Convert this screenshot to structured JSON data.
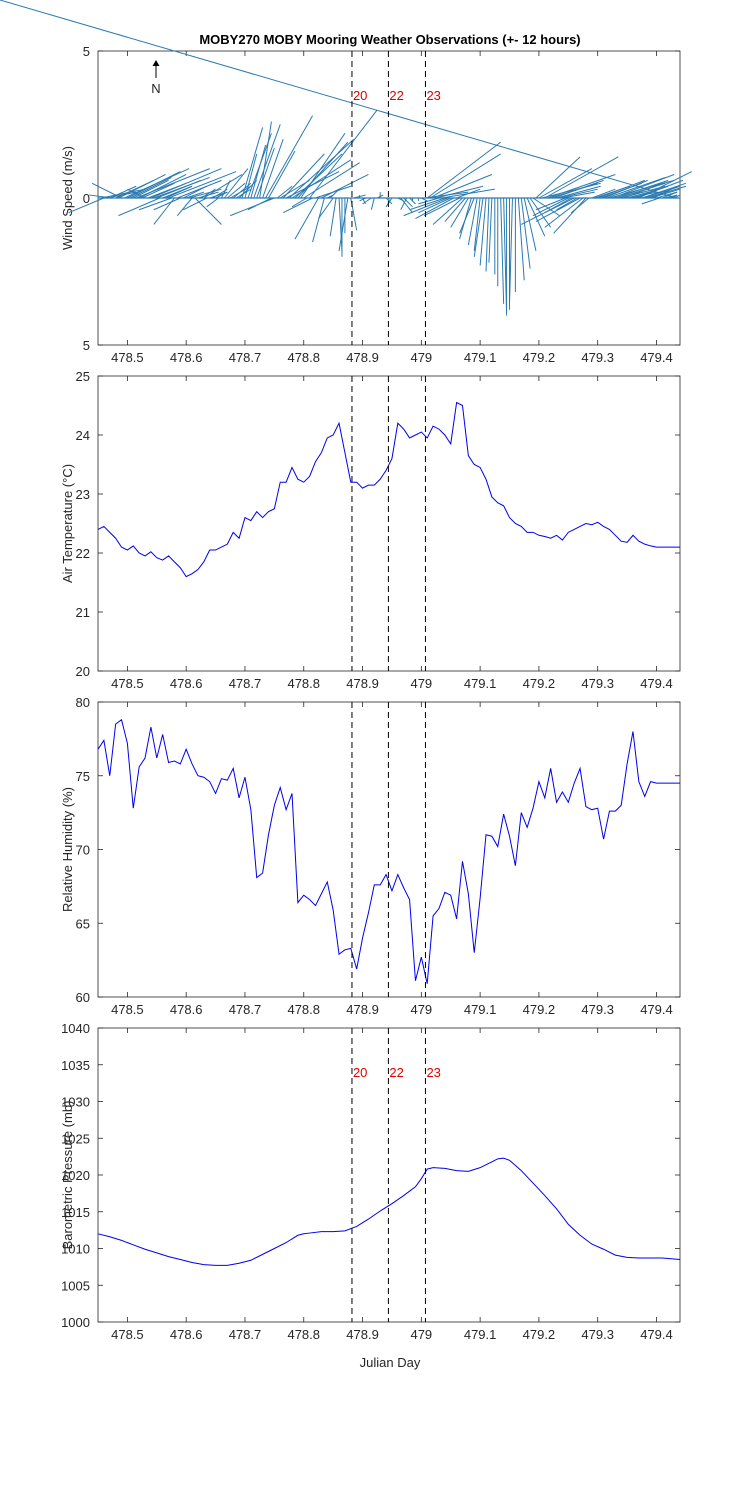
{
  "title": "MOBY270 MOBY Mooring Weather Observations (+- 12 hours)",
  "xlabel": "Julian Day",
  "xlim": [
    478.45,
    479.44
  ],
  "xticks": [
    478.5,
    478.6,
    478.7,
    478.8,
    478.9,
    479,
    479.1,
    479.2,
    479.3,
    479.4
  ],
  "xtick_labels": [
    "478.5",
    "478.6",
    "478.7",
    "478.8",
    "478.9",
    "479",
    "479.1",
    "479.2",
    "479.3",
    "479.4"
  ],
  "markers": [
    {
      "x": 478.882,
      "label": "20"
    },
    {
      "x": 478.944,
      "label": "22"
    },
    {
      "x": 479.007,
      "label": "23"
    }
  ],
  "north_label": "N",
  "colors": {
    "line": "#0000ee",
    "quiver": "#2a7ab0",
    "marker_label": "#e00000",
    "axis": "#262626"
  },
  "chart_data": [
    {
      "type": "line",
      "subtype": "quiver",
      "ylabel": "Wind Speed (m/s)",
      "ylim": [
        -5,
        5
      ],
      "ytick_labels": [
        "5",
        "0",
        "5"
      ],
      "x": [
        478.455,
        478.46,
        478.465,
        478.47,
        478.475,
        478.48,
        478.485,
        478.49,
        478.495,
        478.5,
        478.505,
        478.51,
        478.515,
        478.52,
        478.525,
        478.53,
        478.535,
        478.54,
        478.545,
        478.55,
        478.555,
        478.56,
        478.565,
        478.57,
        478.575,
        478.58,
        478.585,
        478.59,
        478.595,
        478.6,
        478.605,
        478.61,
        478.615,
        478.62,
        478.625,
        478.63,
        478.635,
        478.64,
        478.645,
        478.65,
        478.655,
        478.66,
        478.665,
        478.67,
        478.675,
        478.68,
        478.685,
        478.69,
        478.695,
        478.7,
        478.705,
        478.71,
        478.715,
        478.72,
        478.725,
        478.73,
        478.735,
        478.74,
        478.745,
        478.75,
        478.755,
        478.76,
        478.765,
        478.77,
        478.775,
        478.78,
        478.785,
        478.79,
        478.795,
        478.8,
        478.805,
        478.81,
        478.815,
        478.82,
        478.825,
        478.83,
        478.835,
        478.84,
        478.845,
        478.85,
        478.855,
        478.86,
        478.865,
        478.87,
        478.875,
        478.88,
        478.885,
        478.89,
        478.895,
        478.9,
        478.905,
        478.91,
        478.915,
        478.92,
        478.925,
        478.93,
        478.935,
        478.94,
        478.945,
        478.95,
        478.955,
        478.96,
        478.965,
        478.97,
        478.975,
        478.98,
        478.985,
        478.99,
        478.995,
        479,
        479.005,
        479.01,
        479.015,
        479.02,
        479.025,
        479.03,
        479.035,
        479.04,
        479.045,
        479.05,
        479.055,
        479.06,
        479.065,
        479.07,
        479.075,
        479.08,
        479.085,
        479.09,
        479.095,
        479.1,
        479.105,
        479.11,
        479.115,
        479.12,
        479.125,
        479.13,
        479.135,
        479.14,
        479.145,
        479.15,
        479.155,
        479.16,
        479.165,
        479.17,
        479.175,
        479.18,
        479.185,
        479.19,
        479.195,
        479.2,
        479.205,
        479.21,
        479.215,
        479.22,
        479.225,
        479.23,
        479.235,
        479.24,
        479.245,
        479.25,
        479.255,
        479.26,
        479.265,
        479.27,
        479.275,
        479.28,
        479.285,
        479.29,
        479.295,
        479.3,
        479.305,
        479.31,
        479.315,
        479.32,
        479.325,
        479.33,
        479.335,
        479.34,
        479.345,
        479.35,
        479.355,
        479.36,
        479.365,
        479.37,
        479.375,
        479.38,
        479.385,
        479.39,
        479.395,
        479.4,
        479.405,
        479.41,
        479.415,
        479.42,
        479.425,
        479.43,
        479.435
      ],
      "u": [
        1.5,
        -1.2,
        1.0,
        0.9,
        -0.8,
        1.3,
        1.6,
        -1.0,
        2.2,
        1.8,
        1.4,
        1.2,
        2.5,
        1.6,
        1.1,
        -0.6,
        1.3,
        2.4,
        1.9,
        1.5,
        -1.4,
        1.0,
        0.9,
        2.3,
        -1.1,
        -0.7,
        1.5,
        -0.9,
        0.8,
        0.6,
        1.1,
        -0.5,
        0.9,
        0.7,
        0.5,
        1.3,
        -0.8,
        0.6,
        0.5,
        0.4,
        -0.4,
        0.3,
        0.8,
        0.6,
        0.7,
        0.6,
        0.5,
        0.6,
        0.7,
        0.4,
        0.8,
        0.5,
        0.9,
        0.6,
        0.4,
        0.7,
        1.6,
        0.9,
        -0.8,
        -1.5,
        0.5,
        1.0,
        1.4,
        1.8,
        2.2,
        2.0,
        1.6,
        1.7,
        1.5,
        1.9,
        -0.5,
        2.3,
        -1.0,
        1.2,
        -0.8,
        1.6,
        -0.4,
        0.2,
        0.3,
        -0.5,
        -0.2,
        0.1,
        0.0,
        0.0,
        -0.3,
        0.2,
        0.4,
        0.3,
        0.0,
        0.1,
        -0.2,
        0.0,
        -0.3,
        -0.1,
        0.2,
        0.0,
        0.3,
        0.2,
        0.0,
        -0.2,
        0.3,
        0.2,
        0.4,
        0.3,
        -0.2,
        0.2,
        0.0,
        0.0,
        0.0,
        0.2,
        1.5,
        2.5,
        2.4,
        2.0,
        1.6,
        -0.7,
        1.8,
        -1.2,
        -1.5,
        -1.1,
        -1.3,
        0.8,
        -1.2,
        -1.0,
        -0.7,
        -0.6,
        -0.4,
        -0.5,
        -0.3,
        -0.2,
        -0.3,
        -0.2,
        -0.1,
        -0.1,
        0.0,
        0.0,
        0.1,
        0.1,
        0.0,
        0.0,
        -0.1,
        0.0,
        0.2,
        0.3,
        0.4,
        0.6,
        0.7,
        0.9,
        1.5,
        1.8,
        2.0,
        2.5,
        2.3,
        1.6,
        1.7,
        1.5,
        1.3,
        1.1,
        -1.0,
        -1.2,
        -0.9,
        -1.8,
        -0.7,
        -1.5,
        -1.3,
        -1.1,
        -0.6,
        0.8,
        1.2,
        1.6,
        1.4,
        1.5,
        2.0,
        2.2,
        2.1,
        1.8,
        1.6,
        1.5,
        1.3,
        1.1,
        0.9,
        1.2,
        1.6,
        1.8,
        1.5,
        1.2,
        1.3,
        1.0,
        0.8,
        0.7,
        -0.6,
        0.5,
        0.4,
        0.3,
        0.2,
        0.2
      ],
      "v": [
        0.3,
        -0.5,
        0.2,
        0.4,
        0.1,
        0.6,
        0.8,
        0.5,
        1.0,
        0.9,
        0.7,
        0.6,
        1.0,
        0.8,
        0.5,
        0.3,
        0.5,
        1.0,
        0.7,
        0.6,
        -0.6,
        0.4,
        0.4,
        0.9,
        -0.4,
        -0.9,
        0.6,
        -0.4,
        0.4,
        0.2,
        0.3,
        -0.6,
        -0.9,
        0.2,
        0.3,
        0.8,
        -0.4,
        0.2,
        0.3,
        0.2,
        -0.3,
        0.6,
        1.0,
        0.5,
        0.4,
        0.5,
        0.3,
        0.6,
        2.4,
        1.5,
        2.2,
        1.8,
        2.5,
        1.7,
        2.6,
        2.0,
        2.8,
        1.6,
        -0.4,
        -0.6,
        0.4,
        0.6,
        1.5,
        0.9,
        2.0,
        1.3,
        1.5,
        1.9,
        2.2,
        1.2,
        -0.3,
        3.0,
        -0.5,
        0.4,
        -1.4,
        0.8,
        -1.5,
        0.1,
        0.3,
        -0.7,
        -1.3,
        -1.8,
        -2.0,
        -1.2,
        -1.8,
        -1.1,
        0.1,
        0.0,
        0.1,
        -0.2,
        -0.1,
        0.0,
        -0.2,
        -0.4,
        0.1,
        0.2,
        0.0,
        -0.2,
        -0.1,
        -0.3,
        0.0,
        -0.1,
        -0.5,
        -0.3,
        -0.4,
        -0.2,
        -0.1,
        0.0,
        -0.1,
        -0.1,
        0.2,
        1.9,
        1.5,
        0.8,
        0.4,
        -0.2,
        0.3,
        -0.4,
        -0.6,
        -0.5,
        -0.7,
        0.3,
        -0.6,
        -0.9,
        -0.8,
        -1.0,
        -1.4,
        -1.2,
        -1.6,
        -1.8,
        -2.0,
        -2.3,
        -2.5,
        -2.2,
        -2.6,
        -3.0,
        -3.6,
        -3.9,
        -4.0,
        -3.8,
        -3.6,
        -3.2,
        -2.8,
        -2.4,
        -1.8,
        -1.3,
        -1.0,
        -0.6,
        1.4,
        1.0,
        0.5,
        1.4,
        0.8,
        0.5,
        0.6,
        0.4,
        0.3,
        0.2,
        -0.4,
        -0.6,
        -0.5,
        -0.9,
        -0.4,
        -0.8,
        -1.0,
        -1.2,
        -0.5,
        0.3,
        0.4,
        0.6,
        0.5,
        0.6,
        0.7,
        0.6,
        0.8,
        0.6,
        0.5,
        0.4,
        0.5,
        0.3,
        0.2,
        0.4,
        0.6,
        0.9,
        0.5,
        0.4,
        0.4,
        0.3,
        0.4,
        0.2,
        -0.2,
        0.2,
        0.1,
        0.1,
        0.1,
        0.1
      ]
    },
    {
      "type": "line",
      "ylabel": "Air Temperature (°C)",
      "ylim": [
        20,
        25
      ],
      "yticks": [
        20,
        21,
        22,
        23,
        24,
        25
      ],
      "ytick_labels": [
        "20",
        "21",
        "22",
        "23",
        "24",
        "25"
      ],
      "x": [
        478.45,
        478.46,
        478.47,
        478.48,
        478.49,
        478.5,
        478.51,
        478.52,
        478.53,
        478.54,
        478.55,
        478.56,
        478.57,
        478.58,
        478.59,
        478.6,
        478.61,
        478.62,
        478.63,
        478.64,
        478.65,
        478.66,
        478.67,
        478.68,
        478.69,
        478.7,
        478.71,
        478.72,
        478.73,
        478.74,
        478.75,
        478.76,
        478.77,
        478.78,
        478.79,
        478.8,
        478.81,
        478.82,
        478.83,
        478.84,
        478.85,
        478.86,
        478.87,
        478.88,
        478.89,
        478.9,
        478.91,
        478.92,
        478.93,
        478.94,
        478.95,
        478.96,
        478.97,
        478.98,
        478.99,
        479,
        479.01,
        479.02,
        479.03,
        479.04,
        479.05,
        479.06,
        479.07,
        479.08,
        479.09,
        479.1,
        479.11,
        479.12,
        479.13,
        479.14,
        479.15,
        479.16,
        479.17,
        479.18,
        479.19,
        479.2,
        479.21,
        479.22,
        479.23,
        479.24,
        479.25,
        479.26,
        479.27,
        479.28,
        479.29,
        479.3,
        479.31,
        479.32,
        479.33,
        479.34,
        479.35,
        479.36,
        479.37,
        479.38,
        479.39,
        479.4,
        479.41,
        479.42,
        479.43,
        479.44
      ],
      "y": [
        22.4,
        22.45,
        22.35,
        22.25,
        22.1,
        22.05,
        22.12,
        22.0,
        21.95,
        22.02,
        21.92,
        21.88,
        21.95,
        21.85,
        21.75,
        21.6,
        21.65,
        21.72,
        21.85,
        22.05,
        22.05,
        22.1,
        22.15,
        22.35,
        22.25,
        22.6,
        22.55,
        22.7,
        22.6,
        22.7,
        22.75,
        23.2,
        23.2,
        23.45,
        23.25,
        23.2,
        23.3,
        23.55,
        23.7,
        23.95,
        24.0,
        24.2,
        23.7,
        23.2,
        23.2,
        23.1,
        23.15,
        23.15,
        23.25,
        23.4,
        23.6,
        24.2,
        24.1,
        23.95,
        24.0,
        24.05,
        23.95,
        24.15,
        24.1,
        24.0,
        23.85,
        24.55,
        24.5,
        23.65,
        23.5,
        23.45,
        23.25,
        22.95,
        22.85,
        22.8,
        22.6,
        22.5,
        22.45,
        22.35,
        22.35,
        22.3,
        22.28,
        22.25,
        22.3,
        22.22,
        22.35,
        22.4,
        22.45,
        22.5,
        22.48,
        22.52,
        22.45,
        22.4,
        22.3,
        22.2,
        22.18,
        22.3,
        22.2,
        22.15,
        22.12,
        22.1,
        22.1,
        22.1,
        22.1,
        22.1
      ]
    },
    {
      "type": "line",
      "ylabel": "Relative Humidity (%)",
      "ylim": [
        60,
        80
      ],
      "yticks": [
        60,
        65,
        70,
        75,
        80
      ],
      "ytick_labels": [
        "60",
        "65",
        "70",
        "75",
        "80"
      ],
      "x": [
        478.45,
        478.46,
        478.47,
        478.48,
        478.49,
        478.5,
        478.51,
        478.52,
        478.53,
        478.54,
        478.55,
        478.56,
        478.57,
        478.58,
        478.59,
        478.6,
        478.61,
        478.62,
        478.63,
        478.64,
        478.65,
        478.66,
        478.67,
        478.68,
        478.69,
        478.7,
        478.71,
        478.72,
        478.73,
        478.74,
        478.75,
        478.76,
        478.77,
        478.78,
        478.79,
        478.8,
        478.81,
        478.82,
        478.83,
        478.84,
        478.85,
        478.86,
        478.87,
        478.88,
        478.89,
        478.9,
        478.91,
        478.92,
        478.93,
        478.94,
        478.95,
        478.96,
        478.97,
        478.98,
        478.99,
        479,
        479.01,
        479.02,
        479.03,
        479.04,
        479.05,
        479.06,
        479.07,
        479.08,
        479.09,
        479.1,
        479.11,
        479.12,
        479.13,
        479.14,
        479.15,
        479.16,
        479.17,
        479.18,
        479.19,
        479.2,
        479.21,
        479.22,
        479.23,
        479.24,
        479.25,
        479.26,
        479.27,
        479.28,
        479.29,
        479.3,
        479.31,
        479.32,
        479.33,
        479.34,
        479.35,
        479.36,
        479.37,
        479.38,
        479.39,
        479.4,
        479.41,
        479.42,
        479.43,
        479.44
      ],
      "y": [
        76.8,
        77.4,
        75.0,
        78.5,
        78.8,
        77.2,
        72.8,
        75.6,
        76.2,
        78.3,
        76.2,
        77.8,
        75.9,
        76.0,
        75.8,
        76.8,
        75.8,
        75.0,
        74.9,
        74.6,
        73.8,
        74.8,
        74.7,
        75.5,
        73.5,
        74.9,
        72.7,
        68.1,
        68.4,
        71.0,
        73.0,
        74.2,
        72.7,
        73.8,
        66.4,
        66.9,
        66.6,
        66.2,
        67.0,
        67.8,
        65.9,
        62.9,
        63.2,
        63.3,
        61.9,
        64.0,
        65.7,
        67.6,
        67.6,
        68.3,
        67.2,
        68.3,
        67.4,
        66.6,
        61.1,
        62.7,
        60.9,
        65.5,
        66.0,
        67.1,
        66.9,
        65.3,
        69.2,
        67.0,
        63.0,
        66.7,
        71.0,
        70.9,
        70.2,
        72.4,
        70.9,
        68.9,
        72.5,
        71.5,
        72.8,
        74.6,
        73.5,
        75.5,
        73.2,
        73.9,
        73.2,
        74.5,
        75.5,
        72.9,
        72.7,
        72.8,
        70.7,
        72.6,
        72.6,
        73.0,
        75.8,
        78.0,
        74.6,
        73.6,
        74.6,
        74.5,
        74.5,
        74.5,
        74.5,
        74.5
      ]
    },
    {
      "type": "line",
      "ylabel": "Barometric Pressure (mb)",
      "ylim": [
        1000,
        1040
      ],
      "yticks": [
        1000,
        1005,
        1010,
        1015,
        1020,
        1025,
        1030,
        1035,
        1040
      ],
      "ytick_labels": [
        "1000",
        "1005",
        "1010",
        "1015",
        "1020",
        "1025",
        "1030",
        "1035",
        "1040"
      ],
      "x": [
        478.45,
        478.47,
        478.49,
        478.51,
        478.53,
        478.55,
        478.57,
        478.59,
        478.61,
        478.63,
        478.65,
        478.67,
        478.69,
        478.71,
        478.73,
        478.75,
        478.77,
        478.79,
        478.8,
        478.81,
        478.83,
        478.85,
        478.87,
        478.89,
        478.91,
        478.93,
        478.95,
        478.97,
        478.99,
        479.0,
        479.01,
        479.02,
        479.04,
        479.06,
        479.08,
        479.1,
        479.12,
        479.13,
        479.14,
        479.15,
        479.17,
        479.19,
        479.21,
        479.23,
        479.25,
        479.27,
        479.29,
        479.31,
        479.33,
        479.35,
        479.37,
        479.39,
        479.41,
        479.44
      ],
      "y": [
        1012.0,
        1011.6,
        1011.1,
        1010.5,
        1009.9,
        1009.4,
        1008.9,
        1008.5,
        1008.1,
        1007.8,
        1007.7,
        1007.7,
        1008.0,
        1008.4,
        1009.2,
        1010.0,
        1010.8,
        1011.8,
        1012.0,
        1012.1,
        1012.3,
        1012.3,
        1012.4,
        1013.0,
        1014.0,
        1015.1,
        1016.1,
        1017.2,
        1018.4,
        1019.5,
        1020.8,
        1021.0,
        1020.9,
        1020.6,
        1020.5,
        1021.0,
        1021.8,
        1022.2,
        1022.3,
        1022.0,
        1020.6,
        1018.9,
        1017.2,
        1015.4,
        1013.3,
        1011.8,
        1010.6,
        1009.9,
        1009.1,
        1008.8,
        1008.7,
        1008.7,
        1008.7,
        1008.5
      ]
    }
  ]
}
